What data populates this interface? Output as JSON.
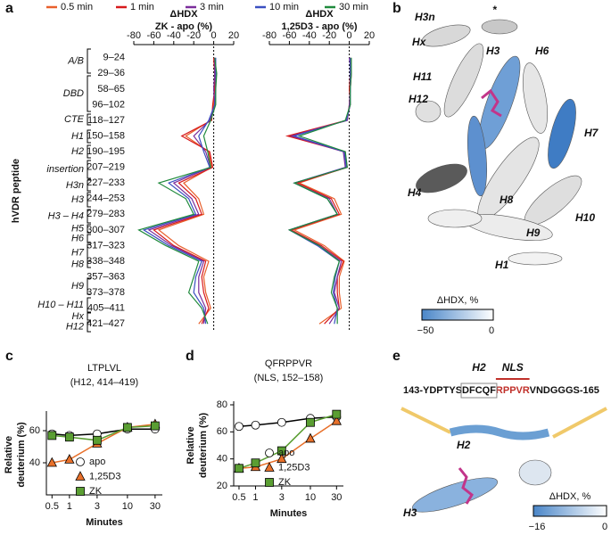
{
  "panel_labels": [
    "a",
    "b",
    "c",
    "d",
    "e"
  ],
  "chart_data": [
    {
      "type": "line",
      "title": "ΔHDX",
      "xlabel": "ZK - apo (%)",
      "ylabel": "hVDR peptide",
      "xlim": [
        -80,
        20
      ],
      "xticks": [
        -80,
        -60,
        -40,
        -20,
        0,
        20
      ],
      "categories": [
        "9–24",
        "29–36",
        "58–65",
        "96–102",
        "118–127",
        "150–158",
        "190–195",
        "207–219",
        "227–233",
        "244–253",
        "279–283",
        "300–307",
        "317–323",
        "338–348",
        "357–363",
        "373–378",
        "405–411",
        "421–427"
      ],
      "domains": [
        "A/B",
        "DBD",
        "CTE",
        "H1",
        "H2",
        "insertion",
        "H3n",
        "H3",
        "H3 – H4",
        "H5",
        "H6",
        "H7",
        "H8",
        "H9",
        "H10 – H11",
        "Hx",
        "H12"
      ],
      "series": [
        {
          "name": "0.5 min",
          "color": "#e8602c",
          "values": [
            1,
            2,
            1,
            0,
            -3,
            -28,
            -5,
            -2,
            -30,
            -15,
            -10,
            -55,
            -35,
            -5,
            -10,
            -8,
            -3,
            -15
          ]
        },
        {
          "name": "1 min",
          "color": "#d7191c",
          "values": [
            0,
            1,
            1,
            -1,
            -2,
            -32,
            -4,
            -1,
            -35,
            -18,
            -12,
            -60,
            -40,
            -8,
            -12,
            -10,
            -5,
            -12
          ]
        },
        {
          "name": "3 min",
          "color": "#7b2d9b",
          "values": [
            1,
            1,
            0,
            1,
            -4,
            -20,
            -8,
            -3,
            -40,
            -22,
            -15,
            -65,
            -42,
            -10,
            -15,
            -15,
            -8,
            -10
          ]
        },
        {
          "name": "10 min",
          "color": "#3a4fc1",
          "values": [
            2,
            2,
            2,
            1,
            -5,
            -15,
            -10,
            -4,
            -45,
            -25,
            -18,
            -70,
            -45,
            -12,
            -18,
            -20,
            -10,
            -8
          ]
        },
        {
          "name": "30 min",
          "color": "#1f8a3c",
          "values": [
            1,
            3,
            2,
            2,
            -3,
            -10,
            -6,
            -3,
            -55,
            -28,
            -20,
            -75,
            -48,
            -15,
            -20,
            -25,
            -12,
            -6
          ]
        }
      ]
    },
    {
      "type": "line",
      "title": "ΔHDX",
      "xlabel": "1,25D3 - apo (%)",
      "xlim": [
        -80,
        20
      ],
      "xticks": [
        -80,
        -60,
        -40,
        -20,
        0,
        20
      ],
      "series": [
        {
          "color": "#e8602c",
          "values": [
            1,
            2,
            1,
            0,
            -2,
            -60,
            -4,
            -3,
            -50,
            -15,
            -8,
            -55,
            -25,
            -5,
            -10,
            -10,
            -8,
            -30
          ]
        },
        {
          "color": "#d7191c",
          "values": [
            1,
            1,
            0,
            1,
            -3,
            -62,
            -5,
            -2,
            -52,
            -18,
            -10,
            -58,
            -28,
            -6,
            -12,
            -12,
            -10,
            -25
          ]
        },
        {
          "color": "#7b2d9b",
          "values": [
            0,
            2,
            1,
            0,
            -2,
            -58,
            -6,
            -4,
            -55,
            -20,
            -12,
            -60,
            -30,
            -8,
            -12,
            -15,
            -10,
            -20
          ]
        },
        {
          "color": "#3a4fc1",
          "values": [
            1,
            1,
            1,
            1,
            -3,
            -55,
            -5,
            -3,
            -55,
            -22,
            -12,
            -60,
            -32,
            -10,
            -14,
            -16,
            -12,
            -15
          ]
        },
        {
          "color": "#1f8a3c",
          "values": [
            2,
            2,
            1,
            1,
            -4,
            -50,
            -4,
            -2,
            -55,
            -22,
            -12,
            -60,
            -30,
            -10,
            -15,
            -18,
            -12,
            -12
          ]
        }
      ]
    },
    {
      "type": "line",
      "title": "LTPLVL",
      "subtitle": "(H12, 414–419)",
      "xscale": "log",
      "xlabel": "Minutes",
      "ylabel": [
        "Relative",
        "deuterium (%)"
      ],
      "x": [
        0.5,
        1,
        3,
        10,
        30
      ],
      "xlim": [
        0.4,
        40
      ],
      "xticks": [
        0.5,
        1,
        3,
        10,
        30
      ],
      "ylim": [
        20,
        70
      ],
      "yticks": [
        40,
        60
      ],
      "series": [
        {
          "name": "apo",
          "color": "#000000",
          "marker": "circle",
          "values": [
            58,
            57,
            58,
            61,
            61
          ]
        },
        {
          "name": "1,25D3",
          "color": "#e8702a",
          "marker": "triangle",
          "values": [
            40,
            42,
            52,
            62,
            64
          ]
        },
        {
          "name": "ZK",
          "color": "#5a9e32",
          "marker": "square",
          "values": [
            57,
            56,
            54,
            62,
            63
          ]
        }
      ]
    },
    {
      "type": "line",
      "title": "QFRPPVR",
      "subtitle": "(NLS, 152–158)",
      "xscale": "log",
      "xlabel": "Minutes",
      "ylabel": [
        "Relative",
        "deuterium (%)"
      ],
      "x": [
        0.5,
        1,
        3,
        10,
        30
      ],
      "xlim": [
        0.4,
        40
      ],
      "xticks": [
        0.5,
        1,
        3,
        10,
        30
      ],
      "ylim": [
        20,
        80
      ],
      "yticks": [
        20,
        40,
        60,
        80
      ],
      "series": [
        {
          "name": "apo",
          "color": "#000000",
          "marker": "circle",
          "values": [
            64,
            65,
            67,
            70,
            71
          ]
        },
        {
          "name": "1,25D3",
          "color": "#e8702a",
          "marker": "triangle",
          "values": [
            33,
            34,
            40,
            55,
            68
          ]
        },
        {
          "name": "ZK",
          "color": "#5a9e32",
          "marker": "square",
          "values": [
            33,
            37,
            46,
            67,
            73
          ]
        }
      ]
    }
  ],
  "structure_b": {
    "labels": [
      "H3n",
      "*",
      "Hx",
      "H3",
      "H6",
      "H11",
      "H12",
      "H7",
      "H4",
      "H8",
      "H10",
      "H9",
      "H1"
    ],
    "colorbar": {
      "label": "ΔHDX, %",
      "ticks": [
        "−50",
        "0"
      ]
    }
  },
  "structure_e": {
    "sequence": [
      "143-YDPTYS",
      "DFCQF",
      "RPPVR",
      "VNDGGGS-165"
    ],
    "sequence_labels": [
      "H2",
      "NLS"
    ],
    "labels": [
      "H2",
      "H3"
    ],
    "colorbar": {
      "label": "ΔHDX, %",
      "ticks": [
        "−16",
        "0"
      ]
    }
  }
}
